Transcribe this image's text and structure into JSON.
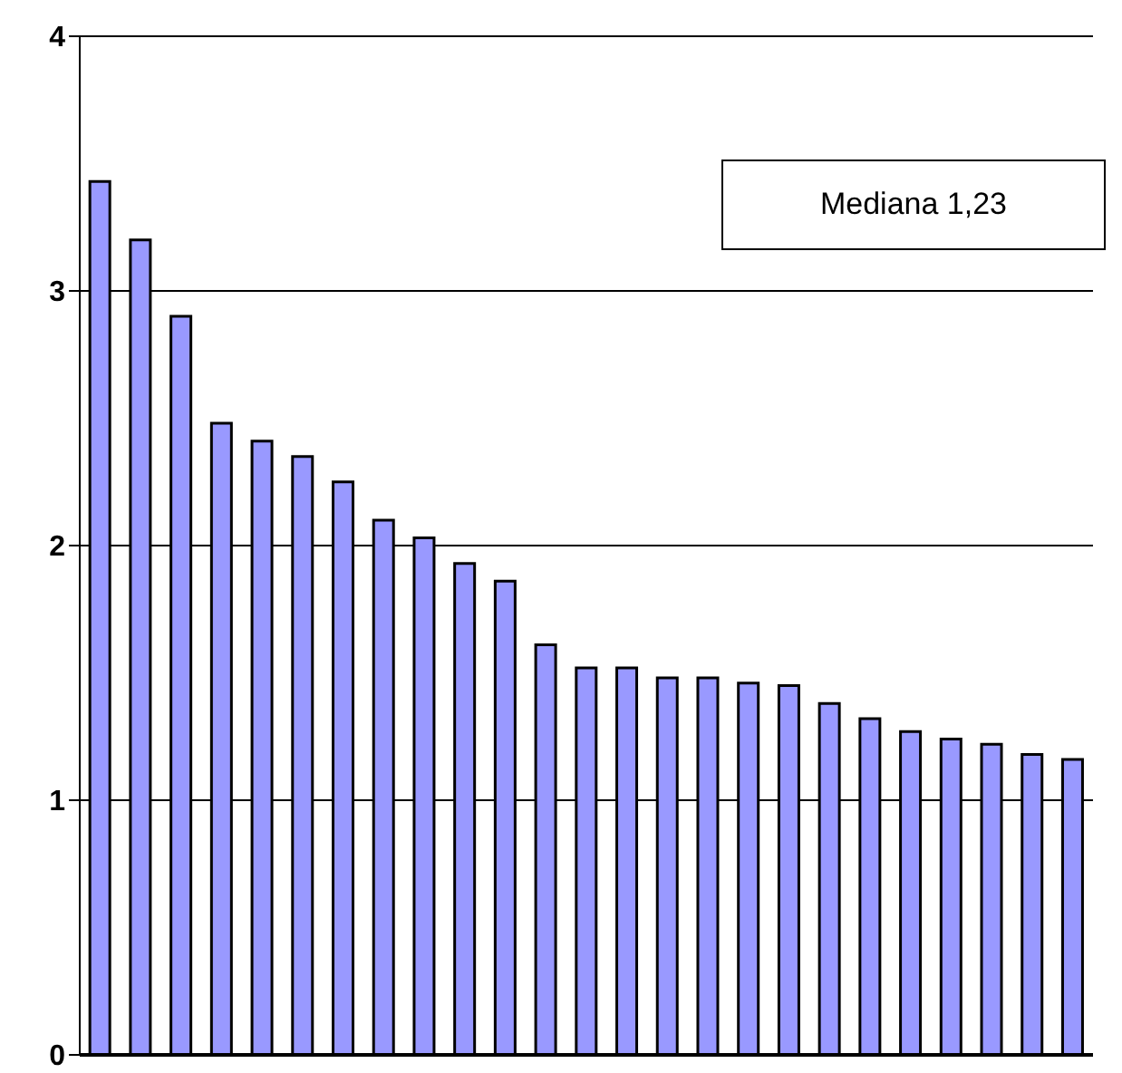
{
  "chart_data": {
    "type": "bar",
    "categories": [
      null,
      null,
      null,
      null,
      null,
      null,
      null,
      null,
      null,
      null,
      null,
      null,
      null,
      null,
      null,
      null,
      null,
      null,
      null,
      null,
      null,
      null,
      null,
      null,
      null
    ],
    "values": [
      3.43,
      3.2,
      2.9,
      2.48,
      2.41,
      2.35,
      2.25,
      2.1,
      2.03,
      1.93,
      1.86,
      1.61,
      1.52,
      1.52,
      1.48,
      1.48,
      1.46,
      1.45,
      1.38,
      1.32,
      1.27,
      1.24,
      1.22,
      1.18,
      1.16
    ],
    "color": "#9999ff",
    "ylim": [
      0,
      4
    ],
    "yticks": [
      0,
      1,
      2,
      3,
      4
    ],
    "grid": "y",
    "annotations": [
      "Mediana 1,23"
    ]
  }
}
